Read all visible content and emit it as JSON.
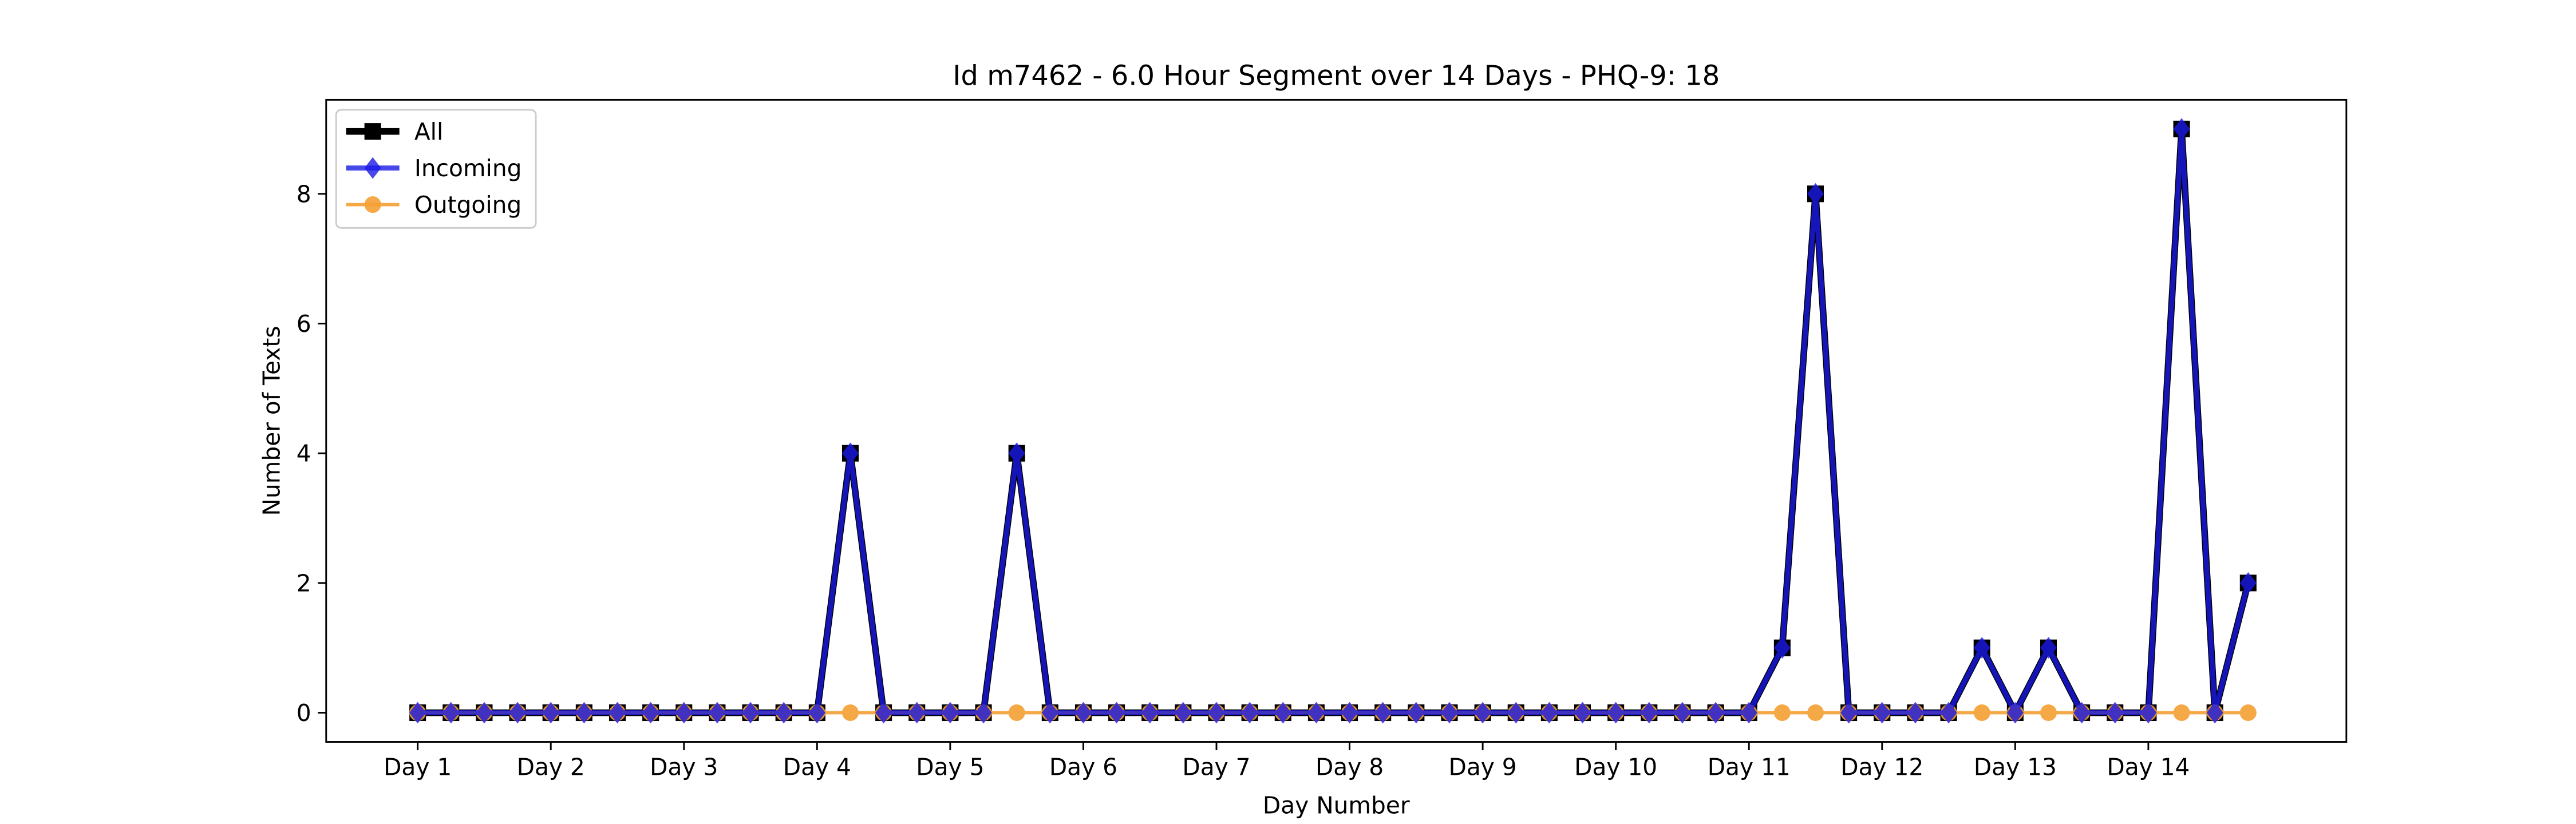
{
  "chart_data": {
    "type": "line",
    "title": "Id m7462 - 6.0 Hour Segment over 14 Days - PHQ-9: 18",
    "x_label": "Day Number",
    "y_label": "Number of Texts",
    "categories": [
      "Day 1",
      null,
      null,
      null,
      "Day 2",
      null,
      null,
      null,
      "Day 3",
      null,
      null,
      null,
      "Day 4",
      null,
      null,
      null,
      "Day 5",
      null,
      null,
      null,
      "Day 6",
      null,
      null,
      null,
      "Day 7",
      null,
      null,
      null,
      "Day 8",
      null,
      null,
      null,
      "Day 9",
      null,
      null,
      null,
      "Day 10",
      null,
      null,
      null,
      "Day 11",
      null,
      null,
      null,
      "Day 12",
      null,
      null,
      null,
      "Day 13",
      null,
      null,
      null,
      "Day 14",
      null,
      null,
      null
    ],
    "series": [
      {
        "name": "All",
        "color": "#000000",
        "values": [
          0,
          0,
          0,
          0,
          0,
          0,
          0,
          0,
          0,
          0,
          0,
          0,
          0,
          4,
          0,
          0,
          0,
          0,
          4,
          0,
          0,
          0,
          0,
          0,
          0,
          0,
          0,
          0,
          0,
          0,
          0,
          0,
          0,
          0,
          0,
          0,
          0,
          0,
          0,
          0,
          0,
          1,
          8,
          0,
          0,
          0,
          0,
          1,
          0,
          1,
          0,
          0,
          0,
          9,
          0,
          2
        ]
      },
      {
        "name": "Outgoing",
        "color": "#f5a033",
        "values": [
          0,
          0,
          0,
          0,
          0,
          0,
          0,
          0,
          0,
          0,
          0,
          0,
          0,
          0,
          0,
          0,
          0,
          0,
          0,
          0,
          0,
          0,
          0,
          0,
          0,
          0,
          0,
          0,
          0,
          0,
          0,
          0,
          0,
          0,
          0,
          0,
          0,
          0,
          0,
          0,
          0,
          0,
          0,
          0,
          0,
          0,
          0,
          0,
          0,
          0,
          0,
          0,
          0,
          0,
          0,
          0
        ]
      },
      {
        "name": "Incoming",
        "color": "#1a1ae6",
        "values": [
          0,
          0,
          0,
          0,
          0,
          0,
          0,
          0,
          0,
          0,
          0,
          0,
          0,
          4,
          0,
          0,
          0,
          0,
          4,
          0,
          0,
          0,
          0,
          0,
          0,
          0,
          0,
          0,
          0,
          0,
          0,
          0,
          0,
          0,
          0,
          0,
          0,
          0,
          0,
          0,
          0,
          1,
          8,
          0,
          0,
          0,
          0,
          1,
          0,
          1,
          0,
          0,
          0,
          9,
          0,
          2
        ]
      }
    ],
    "legend_order": [
      "All",
      "Incoming",
      "Outgoing"
    ],
    "ylim": [
      -0.45,
      9.45
    ],
    "yticks": [
      0,
      2,
      4,
      6,
      8
    ],
    "legend": "upper left"
  }
}
